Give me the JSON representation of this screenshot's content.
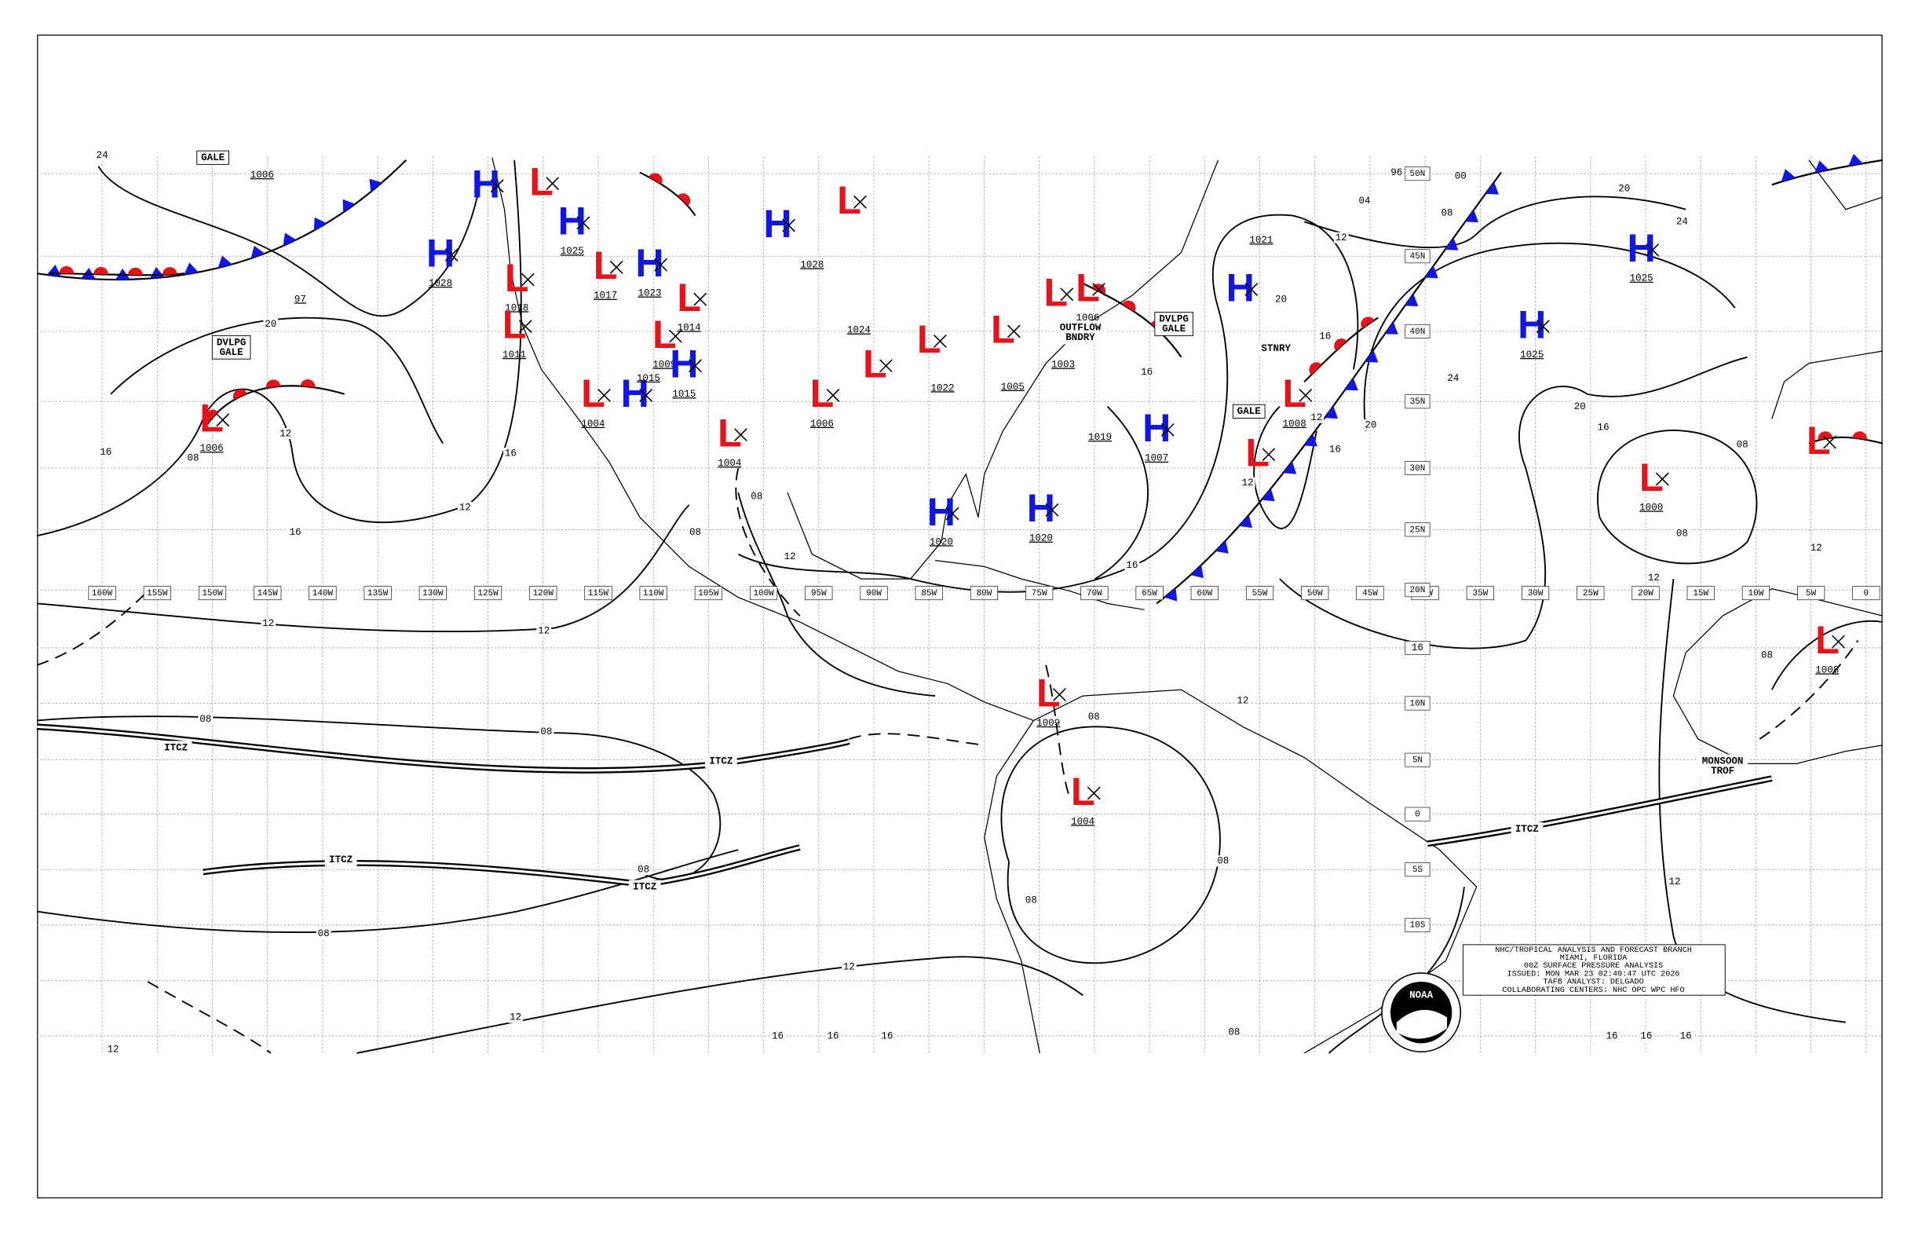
{
  "map": {
    "title_block": [
      "NHC/TROPICAL ANALYSIS AND FORECAST BRANCH",
      "MIAMI, FLORIDA",
      "00Z SURFACE PRESSURE ANALYSIS",
      "ISSUED: MON MAR 23 02:40:47 UTC 2026",
      "TAFB ANALYST: DELGADO",
      "COLLABORATING CENTERS: NHC OPC WPC HFO"
    ],
    "logo": "NOAA",
    "high_color": "#1016e6",
    "low_color": "#e6141a",
    "cold_front_color": "#1016e6",
    "warm_front_color": "#e6141a",
    "longitudes": [
      "160W",
      "155W",
      "150W",
      "145W",
      "140W",
      "135W",
      "130W",
      "125W",
      "120W",
      "115W",
      "110W",
      "105W",
      "100W",
      "95W",
      "90W",
      "85W",
      "80W",
      "75W",
      "70W",
      "65W",
      "60W",
      "55W",
      "50W",
      "45W",
      "40W",
      "35W",
      "30W",
      "25W",
      "20W",
      "15W",
      "10W",
      "5W",
      "0"
    ],
    "latitudes": [
      "50N",
      "45N",
      "40N",
      "35N",
      "30N",
      "25N",
      "20N",
      "15N",
      "10N",
      "5N",
      "0",
      "5S",
      "10S"
    ],
    "centers": [
      {
        "letter": "H"
      },
      {
        "letter": "L"
      },
      {
        "letter": "H",
        "pressure": "1025"
      },
      {
        "letter": "H"
      },
      {
        "letter": "L"
      },
      {
        "letter": "H",
        "pressure": "1028"
      },
      {
        "letter": "L",
        "pressure": "1018"
      },
      {
        "letter": "L",
        "pressure": "1017"
      },
      {
        "letter": "H",
        "pressure": "1023"
      },
      {
        "letter": "L",
        "pressure": "1014"
      },
      {
        "letter": "L",
        "pressure": "1011"
      },
      {
        "letter": "L",
        "pressure": "1009"
      },
      {
        "letter": "H",
        "pressure": "1015"
      },
      {
        "letter": "L",
        "pressure": "1004"
      },
      {
        "letter": "H"
      },
      {
        "letter": "L",
        "pressure": "1004"
      },
      {
        "letter": "L",
        "pressure": "1006"
      },
      {
        "letter": "L"
      },
      {
        "letter": "L"
      },
      {
        "letter": "L"
      },
      {
        "letter": "L"
      },
      {
        "letter": "L",
        "pressure": "1006"
      },
      {
        "letter": "H"
      },
      {
        "letter": "L",
        "pressure": "1008"
      },
      {
        "letter": "L"
      },
      {
        "letter": "H",
        "pressure": "1007"
      },
      {
        "letter": "H",
        "pressure": "1020"
      },
      {
        "letter": "H",
        "pressure": "1020"
      },
      {
        "letter": "H",
        "pressure": "1025"
      },
      {
        "letter": "H",
        "pressure": "1025"
      },
      {
        "letter": "L",
        "pressure": "1000"
      },
      {
        "letter": "L"
      },
      {
        "letter": "L",
        "pressure": "1008"
      },
      {
        "letter": "L",
        "pressure": "1009"
      },
      {
        "letter": "L",
        "pressure": "1004"
      },
      {
        "letter": "L",
        "pressure": "1006"
      }
    ],
    "pressure_labels": [
      "1006",
      "1028",
      "1024",
      "1003",
      "1005",
      "1022",
      "1019",
      "1021",
      "1015",
      "97"
    ],
    "isobar_labels": [
      "24",
      "20",
      "16",
      "12",
      "08",
      "16",
      "12",
      "12",
      "16",
      "12",
      "08",
      "08",
      "08",
      "08",
      "12",
      "12",
      "16",
      "16",
      "16",
      "12",
      "08",
      "08",
      "12",
      "16",
      "16",
      "16",
      "16",
      "12",
      "12",
      "20",
      "20",
      "24",
      "20",
      "24",
      "20",
      "16",
      "08",
      "08",
      "12",
      "12",
      "16",
      "12",
      "08",
      "08",
      "08",
      "12",
      "08",
      "04",
      "00",
      "96",
      "12",
      "16",
      "16",
      "16",
      "08",
      "08"
    ],
    "annotations": [
      {
        "lines": [
          "GALE"
        ],
        "boxed": true
      },
      {
        "lines": [
          "DVLPG",
          "GALE"
        ],
        "boxed": true
      },
      {
        "lines": [
          "DVLPG",
          "GALE"
        ],
        "boxed": true
      },
      {
        "lines": [
          "GALE"
        ],
        "boxed": true
      },
      {
        "lines": [
          "STNRY"
        ]
      },
      {
        "lines": [
          "OUTFLOW",
          "BNDRY"
        ]
      },
      {
        "lines": [
          "ITCZ"
        ]
      },
      {
        "lines": [
          "ITCZ"
        ]
      },
      {
        "lines": [
          "ITCZ"
        ]
      },
      {
        "lines": [
          "ITCZ"
        ]
      },
      {
        "lines": [
          "ITCZ"
        ]
      },
      {
        "lines": [
          "MONSOON",
          "TROF"
        ]
      }
    ]
  }
}
